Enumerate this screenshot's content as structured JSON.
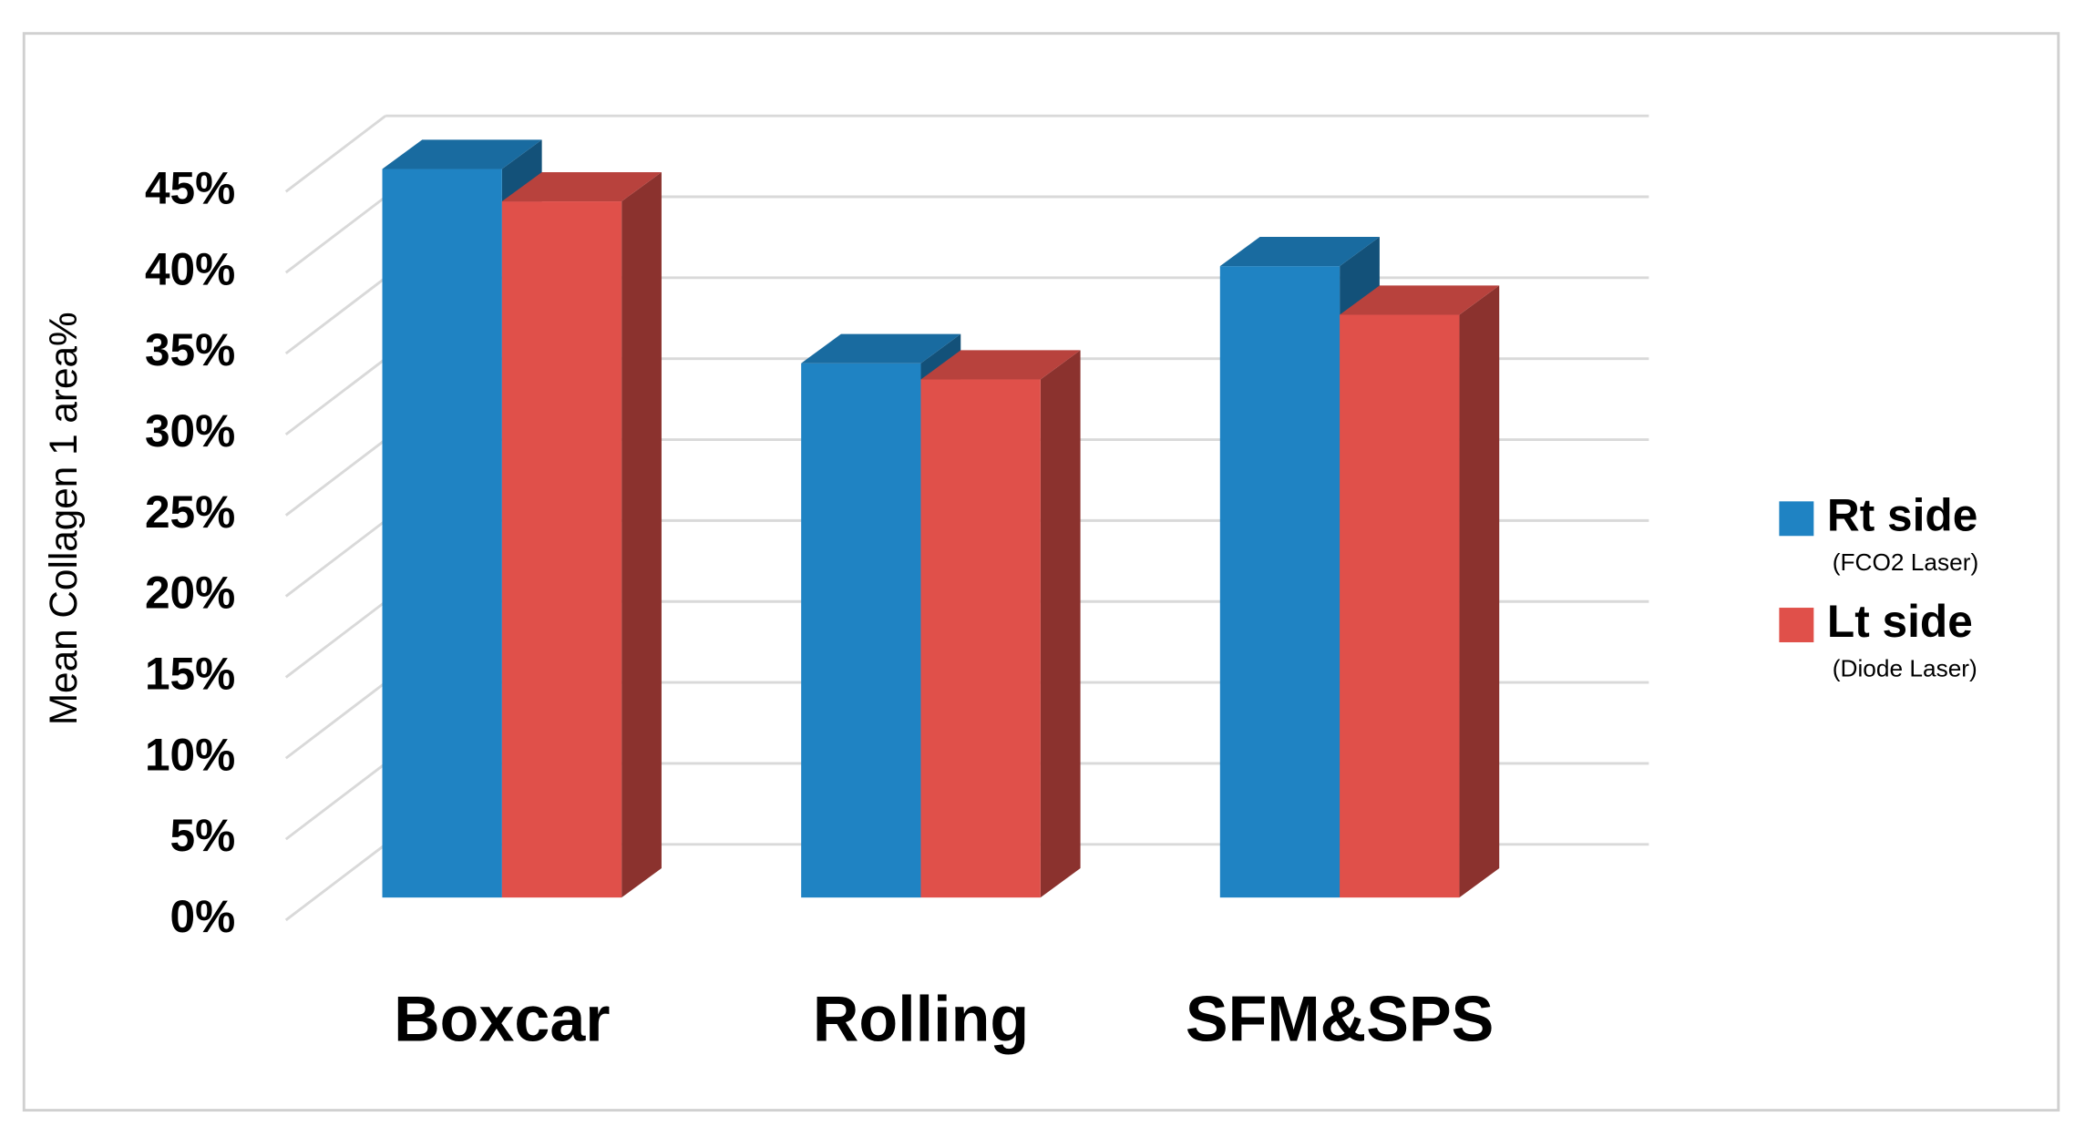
{
  "chart_data": {
    "type": "bar3d",
    "y_axis_label": "Mean Collagen 1 area%",
    "categories": [
      "Boxcar",
      "Rolling",
      "SFM&SPS"
    ],
    "series": [
      {
        "name": "Rt side",
        "sublabel": "(FCO2 Laser)",
        "color": "#1f83c3",
        "values": [
          45,
          33,
          39
        ]
      },
      {
        "name": "Lt side",
        "sublabel": "(Diode Laser)",
        "color": "#e0504a",
        "values": [
          43,
          32,
          36
        ]
      }
    ],
    "ylim": [
      0,
      45
    ],
    "yticks": [
      {
        "value": 0,
        "label": "0%"
      },
      {
        "value": 5,
        "label": "5%"
      },
      {
        "value": 10,
        "label": "10%"
      },
      {
        "value": 15,
        "label": "15%"
      },
      {
        "value": 20,
        "label": "20%"
      },
      {
        "value": 25,
        "label": "25%"
      },
      {
        "value": 30,
        "label": "30%"
      },
      {
        "value": 35,
        "label": "35%"
      },
      {
        "value": 40,
        "label": "40%"
      },
      {
        "value": 45,
        "label": "45%"
      }
    ],
    "grid": true,
    "legend": "right"
  }
}
